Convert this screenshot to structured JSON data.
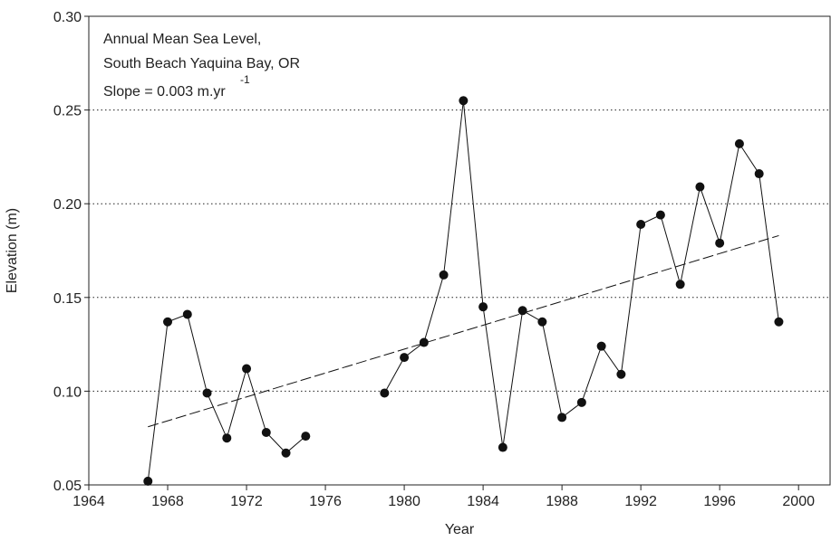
{
  "chart_data": {
    "type": "line",
    "x": [
      1967,
      1968,
      1969,
      1970,
      1971,
      1972,
      1973,
      1974,
      1975,
      1976,
      1977,
      1978,
      1979,
      1980,
      1981,
      1982,
      1983,
      1984,
      1985,
      1986,
      1987,
      1988,
      1989,
      1990,
      1991,
      1992,
      1993,
      1994,
      1995,
      1996,
      1997,
      1998,
      1999
    ],
    "values": [
      0.052,
      0.137,
      0.141,
      0.099,
      0.075,
      0.112,
      0.078,
      0.067,
      0.076,
      null,
      null,
      null,
      0.099,
      0.118,
      0.126,
      0.162,
      0.255,
      0.145,
      0.07,
      0.143,
      0.137,
      0.086,
      0.094,
      0.124,
      0.109,
      0.189,
      0.194,
      0.157,
      0.209,
      0.179,
      0.232,
      0.216,
      0.137
    ],
    "color": "#111111",
    "trend": {
      "x": [
        1967,
        1999
      ],
      "values": [
        0.081,
        0.183
      ]
    },
    "annotations": [
      "Annual Mean Sea Level,",
      "South Beach Yaquina Bay, OR",
      "Slope = 0.003 m.yr",
      "-1"
    ],
    "xlabel": "Year",
    "ylabel": "Elevation (m)",
    "xlim": [
      1964,
      2001.6
    ],
    "xticks": [
      1964,
      1968,
      1972,
      1976,
      1980,
      1984,
      1988,
      1992,
      1996,
      2000
    ],
    "ylim": [
      0.05,
      0.3
    ],
    "yticks": [
      {
        "value": 0.05,
        "label": "0.05"
      },
      {
        "value": 0.1,
        "label": "0.10"
      },
      0.15,
      {
        "value": 0.2,
        "label": "0.20"
      },
      0.25,
      {
        "value": 0.3,
        "label": "0.30"
      }
    ],
    "grid": true
  }
}
